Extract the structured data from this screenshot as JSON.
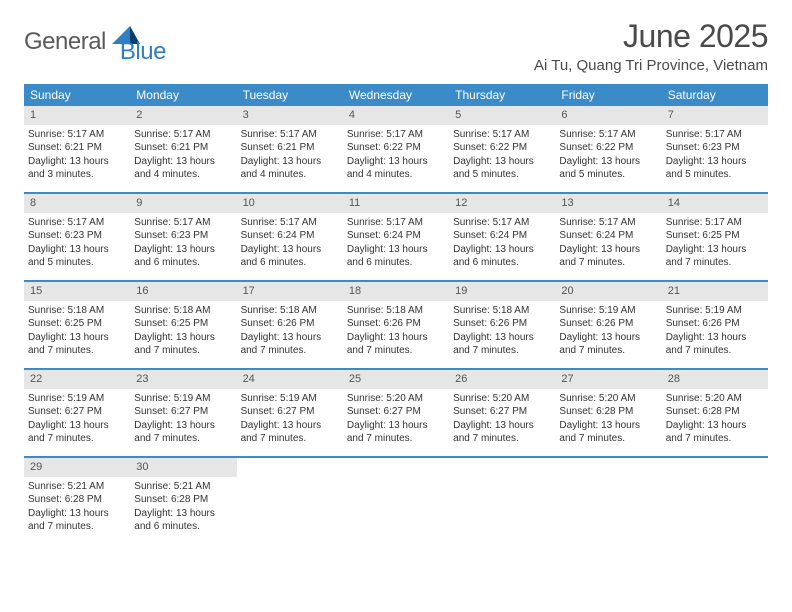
{
  "brand": {
    "word1": "General",
    "word2": "Blue"
  },
  "title": "June 2025",
  "location": "Ai Tu, Quang Tri Province, Vietnam",
  "colors": {
    "header_band": "#3b8bc9",
    "day_band": "#e6e6e6",
    "week_divider": "#3b8bc9",
    "text": "#333333",
    "brand_grey": "#5a5a5a",
    "brand_blue": "#2f7fc1",
    "background": "#ffffff"
  },
  "layout": {
    "columns": 7,
    "weekday_fontsize": 12,
    "daynum_fontsize": 11,
    "body_fontsize": 10,
    "title_fontsize": 32,
    "location_fontsize": 15
  },
  "weekdays": [
    "Sunday",
    "Monday",
    "Tuesday",
    "Wednesday",
    "Thursday",
    "Friday",
    "Saturday"
  ],
  "days": [
    {
      "n": 1,
      "sunrise": "5:17 AM",
      "sunset": "6:21 PM",
      "daylight": "13 hours and 3 minutes."
    },
    {
      "n": 2,
      "sunrise": "5:17 AM",
      "sunset": "6:21 PM",
      "daylight": "13 hours and 4 minutes."
    },
    {
      "n": 3,
      "sunrise": "5:17 AM",
      "sunset": "6:21 PM",
      "daylight": "13 hours and 4 minutes."
    },
    {
      "n": 4,
      "sunrise": "5:17 AM",
      "sunset": "6:22 PM",
      "daylight": "13 hours and 4 minutes."
    },
    {
      "n": 5,
      "sunrise": "5:17 AM",
      "sunset": "6:22 PM",
      "daylight": "13 hours and 5 minutes."
    },
    {
      "n": 6,
      "sunrise": "5:17 AM",
      "sunset": "6:22 PM",
      "daylight": "13 hours and 5 minutes."
    },
    {
      "n": 7,
      "sunrise": "5:17 AM",
      "sunset": "6:23 PM",
      "daylight": "13 hours and 5 minutes."
    },
    {
      "n": 8,
      "sunrise": "5:17 AM",
      "sunset": "6:23 PM",
      "daylight": "13 hours and 5 minutes."
    },
    {
      "n": 9,
      "sunrise": "5:17 AM",
      "sunset": "6:23 PM",
      "daylight": "13 hours and 6 minutes."
    },
    {
      "n": 10,
      "sunrise": "5:17 AM",
      "sunset": "6:24 PM",
      "daylight": "13 hours and 6 minutes."
    },
    {
      "n": 11,
      "sunrise": "5:17 AM",
      "sunset": "6:24 PM",
      "daylight": "13 hours and 6 minutes."
    },
    {
      "n": 12,
      "sunrise": "5:17 AM",
      "sunset": "6:24 PM",
      "daylight": "13 hours and 6 minutes."
    },
    {
      "n": 13,
      "sunrise": "5:17 AM",
      "sunset": "6:24 PM",
      "daylight": "13 hours and 7 minutes."
    },
    {
      "n": 14,
      "sunrise": "5:17 AM",
      "sunset": "6:25 PM",
      "daylight": "13 hours and 7 minutes."
    },
    {
      "n": 15,
      "sunrise": "5:18 AM",
      "sunset": "6:25 PM",
      "daylight": "13 hours and 7 minutes."
    },
    {
      "n": 16,
      "sunrise": "5:18 AM",
      "sunset": "6:25 PM",
      "daylight": "13 hours and 7 minutes."
    },
    {
      "n": 17,
      "sunrise": "5:18 AM",
      "sunset": "6:26 PM",
      "daylight": "13 hours and 7 minutes."
    },
    {
      "n": 18,
      "sunrise": "5:18 AM",
      "sunset": "6:26 PM",
      "daylight": "13 hours and 7 minutes."
    },
    {
      "n": 19,
      "sunrise": "5:18 AM",
      "sunset": "6:26 PM",
      "daylight": "13 hours and 7 minutes."
    },
    {
      "n": 20,
      "sunrise": "5:19 AM",
      "sunset": "6:26 PM",
      "daylight": "13 hours and 7 minutes."
    },
    {
      "n": 21,
      "sunrise": "5:19 AM",
      "sunset": "6:26 PM",
      "daylight": "13 hours and 7 minutes."
    },
    {
      "n": 22,
      "sunrise": "5:19 AM",
      "sunset": "6:27 PM",
      "daylight": "13 hours and 7 minutes."
    },
    {
      "n": 23,
      "sunrise": "5:19 AM",
      "sunset": "6:27 PM",
      "daylight": "13 hours and 7 minutes."
    },
    {
      "n": 24,
      "sunrise": "5:19 AM",
      "sunset": "6:27 PM",
      "daylight": "13 hours and 7 minutes."
    },
    {
      "n": 25,
      "sunrise": "5:20 AM",
      "sunset": "6:27 PM",
      "daylight": "13 hours and 7 minutes."
    },
    {
      "n": 26,
      "sunrise": "5:20 AM",
      "sunset": "6:27 PM",
      "daylight": "13 hours and 7 minutes."
    },
    {
      "n": 27,
      "sunrise": "5:20 AM",
      "sunset": "6:28 PM",
      "daylight": "13 hours and 7 minutes."
    },
    {
      "n": 28,
      "sunrise": "5:20 AM",
      "sunset": "6:28 PM",
      "daylight": "13 hours and 7 minutes."
    },
    {
      "n": 29,
      "sunrise": "5:21 AM",
      "sunset": "6:28 PM",
      "daylight": "13 hours and 7 minutes."
    },
    {
      "n": 30,
      "sunrise": "5:21 AM",
      "sunset": "6:28 PM",
      "daylight": "13 hours and 6 minutes."
    }
  ],
  "labels": {
    "sunrise": "Sunrise: ",
    "sunset": "Sunset: ",
    "daylight": "Daylight: "
  },
  "first_weekday_index": 0,
  "total_weeks": 5
}
